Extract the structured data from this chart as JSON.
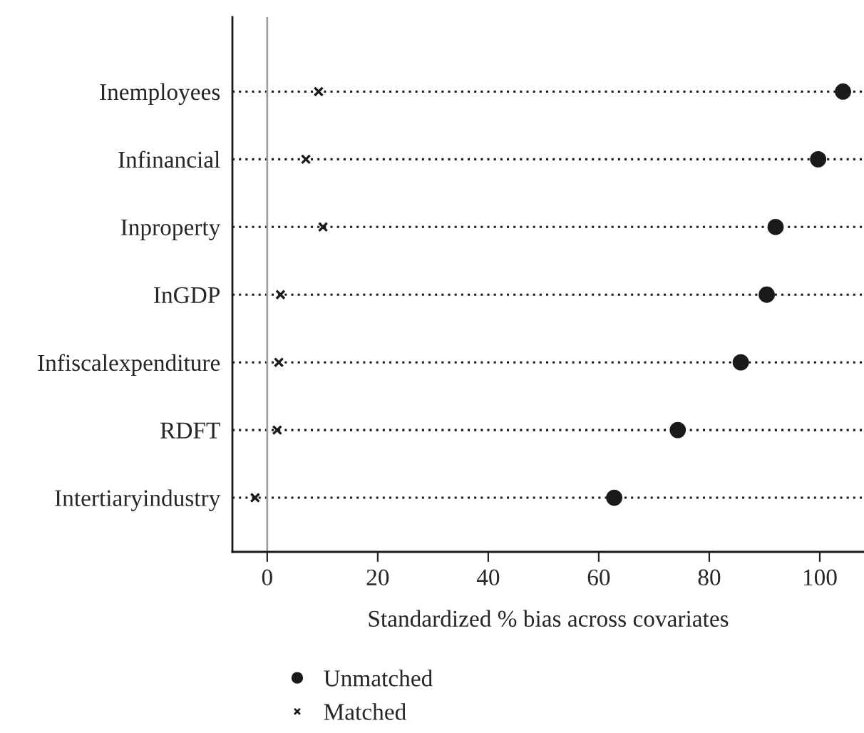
{
  "chart_data": {
    "type": "scatter",
    "orientation": "horizontal",
    "xlabel": "Standardized % bias across covariates",
    "categories": [
      "Inemployees",
      "Infinancial",
      "Inproperty",
      "InGDP",
      "Infiscalexpenditure",
      "RDFT",
      "Intertiaryindustry"
    ],
    "series": [
      {
        "name": "Unmatched",
        "color": "#1a1a1a",
        "marker": "circle",
        "values": [
          104.2,
          99.7,
          92.0,
          90.4,
          85.7,
          74.3,
          62.8
        ]
      },
      {
        "name": "Matched",
        "color": "#1a1a1a",
        "marker": "cross",
        "values": [
          9.3,
          7.0,
          10.1,
          2.4,
          2.1,
          1.8,
          -2.2
        ]
      }
    ],
    "xlim": [
      -6.3,
      108
    ],
    "xticks": [
      0,
      20,
      40,
      60,
      80,
      100
    ],
    "ref_lines": [
      {
        "axis": "x",
        "value": 0,
        "color": "#a0a0a0"
      }
    ],
    "grid": "y",
    "legend": "bottom"
  }
}
